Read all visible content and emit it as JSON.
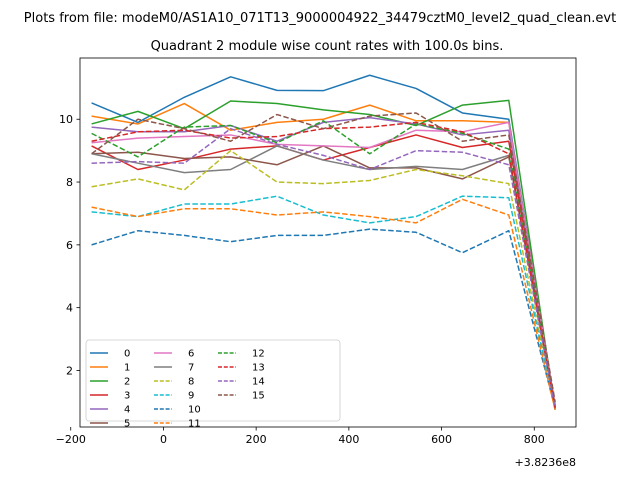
{
  "chart_data": {
    "type": "line",
    "suptitle": "Plots from file: modeM0/AS1A10_071T13_9000004922_34479cztM0_level2_quad_clean.evt",
    "title": "Quadrant 2 module wise count rates with 100.0s bins.",
    "xlabel": "",
    "ylabel": "",
    "x_offset_label": "+3.8236e8",
    "xlim": [
      -180,
      890
    ],
    "ylim": [
      0.2,
      11.95
    ],
    "xticks": [
      -200,
      0,
      200,
      400,
      600,
      800
    ],
    "xtick_labels": [
      "−200",
      "0",
      "200",
      "400",
      "600",
      "800"
    ],
    "yticks": [
      2,
      4,
      6,
      8,
      10
    ],
    "ytick_labels": [
      "2",
      "4",
      "6",
      "8",
      "10"
    ],
    "x": [
      -155,
      -55,
      45,
      145,
      245,
      345,
      445,
      545,
      645,
      745,
      845
    ],
    "legend": {
      "location": "lower-left",
      "columns": 3
    },
    "series": [
      {
        "name": "0",
        "color": "#1f77b4",
        "dash": "solid",
        "values": [
          10.52,
          9.9,
          10.7,
          11.35,
          10.92,
          10.91,
          11.4,
          10.98,
          10.2,
          10.0,
          0.85
        ]
      },
      {
        "name": "1",
        "color": "#ff7f0e",
        "dash": "solid",
        "values": [
          10.1,
          9.85,
          10.5,
          9.65,
          9.9,
          10.0,
          10.45,
          9.95,
          9.95,
          9.9,
          0.8
        ]
      },
      {
        "name": "2",
        "color": "#2ca02c",
        "dash": "solid",
        "values": [
          9.85,
          10.25,
          9.7,
          10.58,
          10.5,
          10.3,
          10.15,
          9.8,
          10.45,
          10.6,
          0.75
        ]
      },
      {
        "name": "3",
        "color": "#d62728",
        "dash": "solid",
        "values": [
          9.15,
          8.4,
          8.7,
          9.05,
          9.15,
          8.7,
          9.1,
          9.5,
          9.1,
          9.3,
          0.9
        ]
      },
      {
        "name": "4",
        "color": "#9467bd",
        "dash": "solid",
        "values": [
          9.75,
          9.6,
          9.6,
          9.8,
          9.3,
          9.9,
          10.05,
          9.85,
          9.5,
          9.65,
          0.8
        ]
      },
      {
        "name": "5",
        "color": "#8c564b",
        "dash": "solid",
        "values": [
          8.9,
          8.95,
          8.75,
          8.8,
          8.55,
          9.15,
          8.45,
          8.45,
          8.1,
          8.8,
          0.85
        ]
      },
      {
        "name": "6",
        "color": "#e377c2",
        "dash": "solid",
        "values": [
          9.25,
          9.4,
          9.45,
          9.5,
          9.2,
          9.15,
          9.1,
          9.65,
          9.6,
          9.9,
          0.8
        ]
      },
      {
        "name": "7",
        "color": "#7f7f7f",
        "dash": "solid",
        "values": [
          8.9,
          8.6,
          8.3,
          8.4,
          9.15,
          8.7,
          8.4,
          8.5,
          8.4,
          8.85,
          0.8
        ]
      },
      {
        "name": "8",
        "color": "#bcbd22",
        "dash": "dashed",
        "values": [
          7.85,
          8.1,
          7.75,
          9.0,
          8.0,
          7.95,
          8.05,
          8.4,
          8.2,
          7.95,
          0.75
        ]
      },
      {
        "name": "9",
        "color": "#17becf",
        "dash": "dashed",
        "values": [
          7.05,
          6.9,
          7.3,
          7.3,
          7.55,
          6.95,
          6.7,
          6.9,
          7.55,
          7.5,
          0.75
        ]
      },
      {
        "name": "10",
        "color": "#1f77b4",
        "dash": "dashed",
        "values": [
          6.0,
          6.45,
          6.3,
          6.1,
          6.3,
          6.3,
          6.5,
          6.4,
          5.75,
          6.45,
          0.8
        ]
      },
      {
        "name": "11",
        "color": "#ff7f0e",
        "dash": "dashed",
        "values": [
          7.2,
          6.9,
          7.15,
          7.15,
          6.95,
          7.05,
          6.9,
          6.7,
          7.45,
          6.95,
          0.75
        ]
      },
      {
        "name": "12",
        "color": "#2ca02c",
        "dash": "dashed",
        "values": [
          9.55,
          8.8,
          9.75,
          9.8,
          9.25,
          9.95,
          8.9,
          9.85,
          9.55,
          9.05,
          0.8
        ]
      },
      {
        "name": "13",
        "color": "#d62728",
        "dash": "dashed",
        "values": [
          9.3,
          9.6,
          9.65,
          9.4,
          9.45,
          9.7,
          9.75,
          9.9,
          9.6,
          8.9,
          0.8
        ]
      },
      {
        "name": "14",
        "color": "#9467bd",
        "dash": "dashed",
        "values": [
          8.6,
          8.65,
          8.6,
          9.7,
          9.2,
          8.85,
          8.4,
          9.0,
          8.95,
          8.55,
          0.8
        ]
      },
      {
        "name": "15",
        "color": "#8c564b",
        "dash": "dashed",
        "values": [
          8.9,
          10.0,
          9.7,
          9.3,
          10.15,
          9.7,
          10.1,
          10.2,
          9.3,
          9.5,
          1.0
        ]
      }
    ]
  }
}
